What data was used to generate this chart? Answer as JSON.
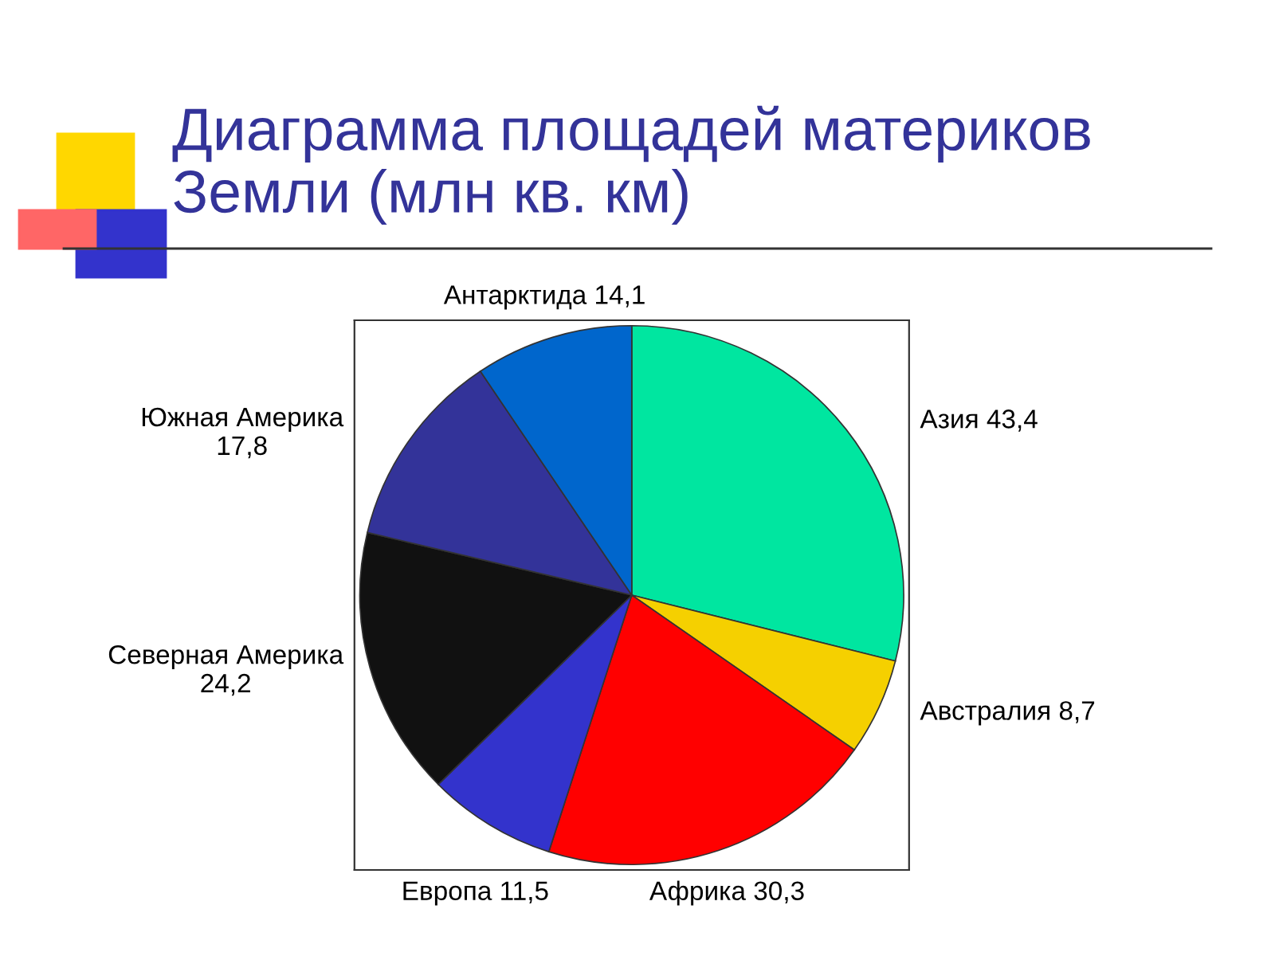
{
  "chart_data": {
    "type": "pie",
    "title": "Диаграмма площадей материков\nЗемли (млн кв. км)",
    "categories": [
      "Азия",
      "Австралия",
      "Африка",
      "Европа",
      "Северная Америка",
      "Южная Америка",
      "Антарктида"
    ],
    "values": [
      43.4,
      8.7,
      30.3,
      11.5,
      24.2,
      17.8,
      14.1
    ],
    "value_labels": [
      "43,4",
      "8,7",
      "30,3",
      "11,5",
      "24,2",
      "17,8",
      "14,1"
    ],
    "colors": [
      "#00e6a0",
      "#f5d000",
      "#ff0000",
      "#3333cc",
      "#111111",
      "#333399",
      "#0066cc"
    ]
  }
}
